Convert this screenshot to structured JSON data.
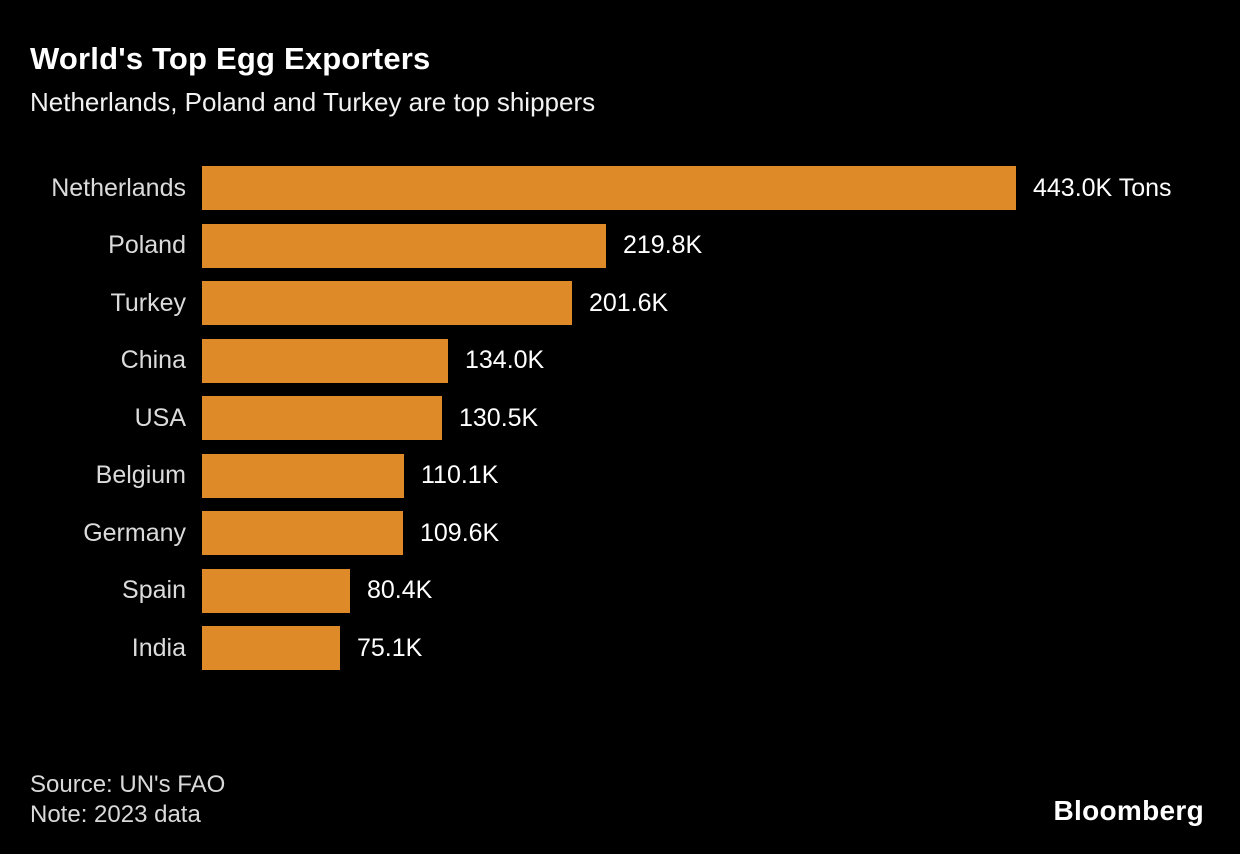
{
  "header": {
    "title": "World's Top Egg Exporters",
    "subtitle": "Netherlands, Poland and Turkey are top shippers"
  },
  "footer": {
    "source": "Source: UN's FAO",
    "note": "Note: 2023 data",
    "brand": "Bloomberg"
  },
  "colors": {
    "background": "#000000",
    "bar": "#df8a29",
    "title_text": "#ffffff",
    "category_text": "#dbdbdb",
    "value_text": "#ffffff",
    "footer_text": "#d9d9d9"
  },
  "chart_data": {
    "type": "bar",
    "orientation": "horizontal",
    "title": "World's Top Egg Exporters",
    "subtitle": "Netherlands, Poland and Turkey are top shippers",
    "unit": "Tons",
    "categories": [
      "Netherlands",
      "Poland",
      "Turkey",
      "China",
      "USA",
      "Belgium",
      "Germany",
      "Spain",
      "India"
    ],
    "values_k_tons": [
      443.0,
      219.8,
      201.6,
      134.0,
      130.5,
      110.1,
      109.6,
      80.4,
      75.1
    ],
    "value_labels": [
      "443.0K Tons",
      "219.8K",
      "201.6K",
      "134.0K",
      "130.5K",
      "110.1K",
      "109.6K",
      "80.4K",
      "75.1K"
    ],
    "xlim_k_tons": [
      0,
      443.0
    ],
    "grid": false,
    "axes_shown": false,
    "legend": false,
    "bar_color": "#df8a29"
  }
}
